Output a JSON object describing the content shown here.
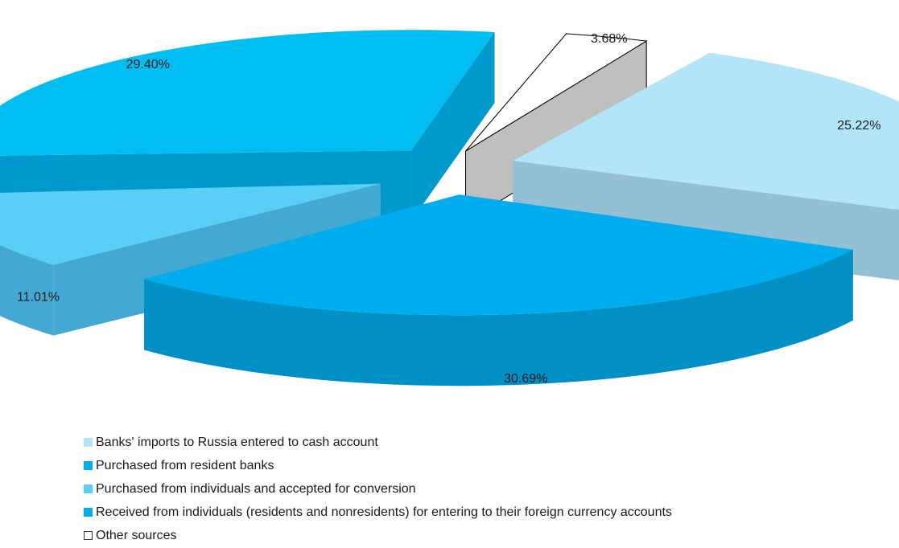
{
  "chart_data": {
    "type": "pie",
    "style": "3d-exploded",
    "slices": [
      {
        "label": "Banks' imports  to Russia entered  to cash account",
        "value": 25.22,
        "value_label": "25.22%",
        "color": "#B3E5F8",
        "side_color": "#93C0D4"
      },
      {
        "label": "Purchased from individuals and accepted for conversion",
        "value": 30.69,
        "value_label": "30.69%",
        "color": "#00AEEF",
        "side_color": "#0090C6"
      },
      {
        "label": "Received from individuals (residents and nonresidents) for entering to their foreign currency accounts",
        "value": 11.01,
        "value_label": "11.01%",
        "color": "#5BCEF5",
        "side_color": "#43A9D2"
      },
      {
        "label": "Purchased from resident banks",
        "value": 29.4,
        "value_label": "29.40%",
        "color": "#00BDF2",
        "side_color": "#0099CC"
      },
      {
        "label": "Other sources",
        "value": 3.68,
        "value_label": "3.68%",
        "color": "#FFFFFF",
        "side_color": "#BFBFBF"
      }
    ],
    "legend_position": "bottom-left"
  },
  "legend": [
    {
      "label": "Banks' imports  to Russia entered  to cash account",
      "color": "#B3E5F8"
    },
    {
      "label": "Purchased from resident banks",
      "color": "#00AEEF"
    },
    {
      "label": "Purchased from individuals and accepted for conversion",
      "color": "#5BCEF5"
    },
    {
      "label": "Received from individuals (residents and nonresidents) for entering to their foreign currency accounts",
      "color": "#00AEEF"
    },
    {
      "label": "Other sources",
      "color": "#FFFFFF"
    }
  ]
}
